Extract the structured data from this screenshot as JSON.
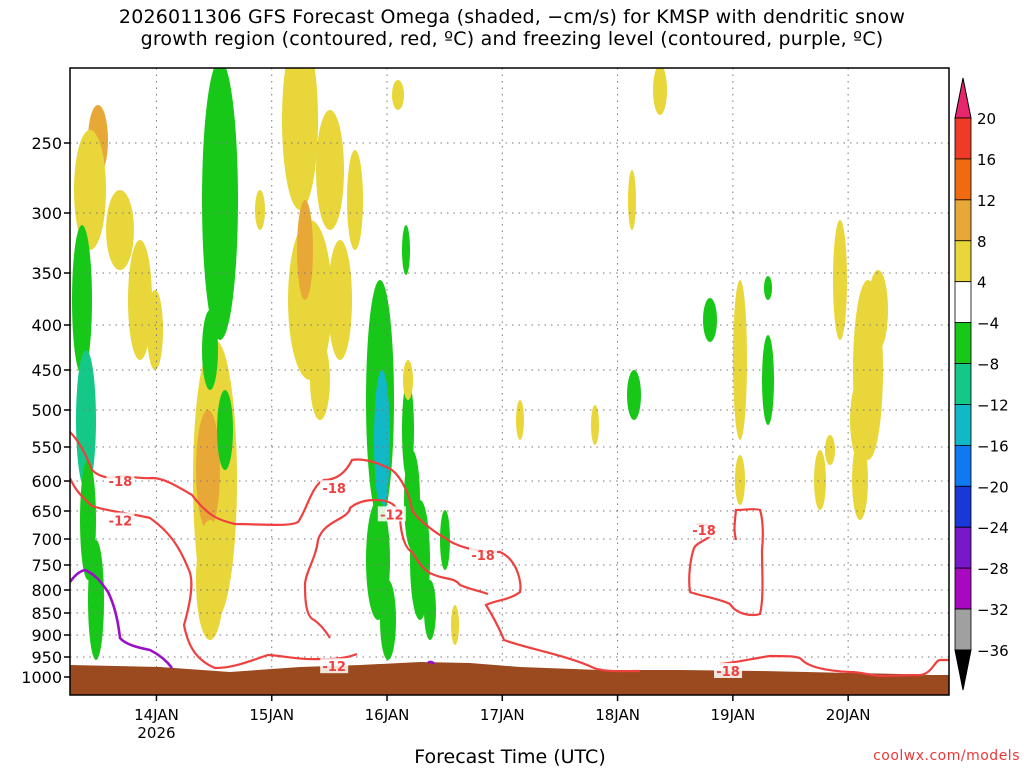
{
  "title": {
    "line1": "2026011306 GFS Forecast Omega (shaded, −cm/s) for KMSP with dendritic snow",
    "line2": "growth region (contoured, red, ºC) and freezing level (contoured, purple, ºC)"
  },
  "xlabel": "Forecast Time (UTC)",
  "credit": "coolwx.com/models",
  "colors": {
    "ground": "#9b4a20",
    "dgz_contour": "#ef4040",
    "freezing_level": "#9a10c8",
    "grid": "#777777"
  },
  "chart_data": {
    "type": "heatmap",
    "y_axis": {
      "unit": "hPa",
      "range": [
        200,
        1000
      ],
      "inverted": true,
      "ticks": [
        "250",
        "300",
        "350",
        "400",
        "450",
        "500",
        "550",
        "600",
        "650",
        "700",
        "750",
        "800",
        "850",
        "900",
        "950",
        "1000"
      ]
    },
    "x_axis": {
      "unit": "date",
      "range_hours": [
        0,
        183
      ],
      "ticks": [
        {
          "label": "14JAN",
          "sublabel": "2026",
          "hour": 18
        },
        {
          "label": "15JAN",
          "hour": 42
        },
        {
          "label": "16JAN",
          "hour": 66
        },
        {
          "label": "17JAN",
          "hour": 90
        },
        {
          "label": "18JAN",
          "hour": 114
        },
        {
          "label": "19JAN",
          "hour": 138
        },
        {
          "label": "20JAN",
          "hour": 162
        }
      ]
    },
    "grid": true,
    "colorbar": {
      "position": "right",
      "labels": [
        "20",
        "16",
        "12",
        "8",
        "4",
        "−4",
        "−8",
        "−12",
        "−16",
        "−20",
        "−24",
        "−28",
        "−32",
        "−36"
      ],
      "colors": [
        "#e8266e",
        "#f03a28",
        "#f06a10",
        "#e8a838",
        "#e8d63a",
        "#ffffff",
        "#18c818",
        "#14c888",
        "#10b8c8",
        "#1078f0",
        "#1838d8",
        "#7818c8",
        "#a808c0",
        "#a0a0a0",
        "#000000"
      ]
    },
    "contour_labels": [
      {
        "text": "-18",
        "hour": 10.5,
        "p": 600
      },
      {
        "text": "-12",
        "hour": 10.5,
        "p": 667
      },
      {
        "text": "-18",
        "hour": 55,
        "p": 612
      },
      {
        "text": "-12",
        "hour": 67,
        "p": 656
      },
      {
        "text": "-18",
        "hour": 86,
        "p": 731
      },
      {
        "text": "-12",
        "hour": 55,
        "p": 973
      },
      {
        "text": "-18",
        "hour": 132,
        "p": 684
      },
      {
        "text": "-18",
        "hour": 137,
        "p": 985
      }
    ]
  }
}
